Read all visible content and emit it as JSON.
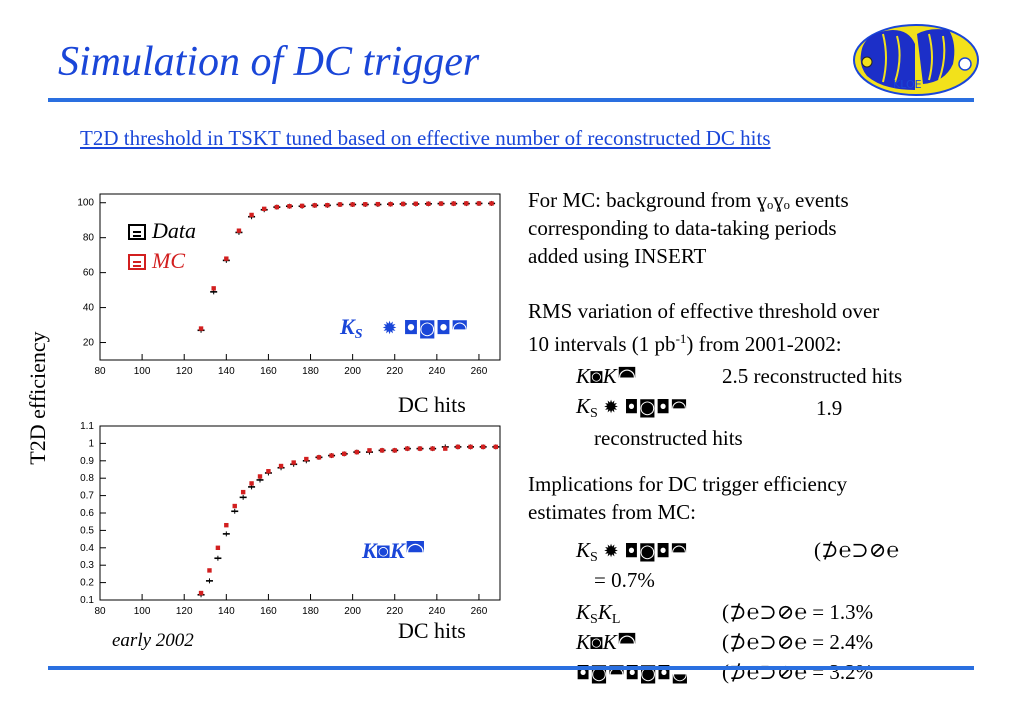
{
  "title": "Simulation of DC trigger",
  "subtitle": "T2D threshold in TSKT tuned based on effective number of reconstructed DC hits",
  "colors": {
    "title": "#1a46d8",
    "rule": "#2a6fe0",
    "mc": "#d21f1f",
    "data": "#000000"
  },
  "figure": {
    "ylabel": "T2D efficiency",
    "xlabel": "DC hits",
    "footnote": "early 2002",
    "legend": {
      "data": "Data",
      "mc": "MC"
    },
    "top_label_k": "K",
    "top_label_sub": "S",
    "top_label_glyphs": "✹  ◘◙◘◚",
    "bottom_label": "K◙K◚"
  },
  "chart_data": [
    {
      "type": "scatter",
      "title": "",
      "xlabel": "DC hits",
      "ylabel": "T2D efficiency",
      "xlim": [
        80,
        270
      ],
      "ylim": [
        10,
        105
      ],
      "xticks": [
        80,
        100,
        120,
        140,
        160,
        180,
        200,
        220,
        240,
        260
      ],
      "yticks": [
        20,
        40,
        60,
        80,
        100
      ],
      "series": [
        {
          "name": "Data",
          "x": [
            128,
            134,
            140,
            146,
            152,
            158,
            164,
            170,
            176,
            182,
            188,
            194,
            200,
            206,
            212,
            218,
            224,
            230,
            236,
            242,
            248,
            254,
            260,
            266
          ],
          "y": [
            27,
            49,
            67,
            83,
            92,
            96,
            97.5,
            98,
            98,
            98.5,
            98.5,
            99,
            99,
            99,
            99,
            99.2,
            99.3,
            99.3,
            99.4,
            99.5,
            99.5,
            99.5,
            99.6,
            99.6
          ]
        },
        {
          "name": "MC",
          "x": [
            128,
            134,
            140,
            146,
            152,
            158,
            164,
            170,
            176,
            182,
            188,
            194,
            200,
            206,
            212,
            218,
            224,
            230,
            236,
            242,
            248,
            254,
            260,
            266
          ],
          "y": [
            28,
            51,
            68,
            84,
            93,
            96.5,
            97.5,
            98,
            98.2,
            98.5,
            98.6,
            99,
            99,
            99.1,
            99.2,
            99.2,
            99.3,
            99.4,
            99.4,
            99.5,
            99.5,
            99.6,
            99.6,
            99.6
          ]
        }
      ]
    },
    {
      "type": "scatter",
      "title": "",
      "xlabel": "DC hits",
      "ylabel": "T2D efficiency",
      "xlim": [
        80,
        270
      ],
      "ylim": [
        0.1,
        1.1
      ],
      "xticks": [
        80,
        100,
        120,
        140,
        160,
        180,
        200,
        220,
        240,
        260
      ],
      "yticks": [
        0.1,
        0.2,
        0.3,
        0.4,
        0.5,
        0.6,
        0.7,
        0.8,
        0.9,
        1,
        1.1
      ],
      "series": [
        {
          "name": "Data",
          "x": [
            128,
            132,
            136,
            140,
            144,
            148,
            152,
            156,
            160,
            166,
            172,
            178,
            184,
            190,
            196,
            202,
            208,
            214,
            220,
            226,
            232,
            238,
            244,
            250,
            256,
            262,
            268
          ],
          "y": [
            0.13,
            0.21,
            0.34,
            0.48,
            0.61,
            0.69,
            0.75,
            0.79,
            0.83,
            0.86,
            0.88,
            0.9,
            0.92,
            0.93,
            0.94,
            0.95,
            0.95,
            0.96,
            0.96,
            0.97,
            0.97,
            0.97,
            0.98,
            0.98,
            0.98,
            0.98,
            0.98
          ]
        },
        {
          "name": "MC",
          "x": [
            128,
            132,
            136,
            140,
            144,
            148,
            152,
            156,
            160,
            166,
            172,
            178,
            184,
            190,
            196,
            202,
            208,
            214,
            220,
            226,
            232,
            238,
            244,
            250,
            256,
            262,
            268
          ],
          "y": [
            0.14,
            0.27,
            0.4,
            0.53,
            0.64,
            0.72,
            0.77,
            0.81,
            0.84,
            0.87,
            0.89,
            0.91,
            0.92,
            0.93,
            0.94,
            0.95,
            0.96,
            0.96,
            0.96,
            0.97,
            0.97,
            0.97,
            0.97,
            0.98,
            0.98,
            0.98,
            0.98
          ]
        }
      ]
    }
  ],
  "text": {
    "p1_line1a": "For MC: background from ",
    "p1_sym": "ɣₒɣₒ",
    "p1_line1b": " events",
    "p1_line2": "corresponding to data-taking periods",
    "p1_line3": "added using INSERT",
    "p2_line1": "RMS variation of effective threshold over",
    "p2_line2a": "10 intervals (1 pb",
    "p2_line2sup": "-1",
    "p2_line2b": ") from 2001-2002:",
    "row1_label": "K◙K◚",
    "row1_value": "2.5 reconstructed hits",
    "row2_label_k": "K",
    "row2_label_sub": "S",
    "row2_label_rest": " ✹ ◘◙◘◚",
    "row2_value": "1.9",
    "row2_value_cont": "reconstructed hits",
    "p3_line1": "Implications for DC trigger efficiency",
    "p3_line2": "estimates from MC:",
    "imp1_label_k": "K",
    "imp1_label_sub": "S",
    "imp1_label_rest": " ✹ ◘◙◘◚",
    "imp1_value": "(⊅℮⊃⊘℮",
    "imp1_value_cont": "= 0.7%",
    "imp2_label_k": "K",
    "imp2_label_sub": "S",
    "imp2_label_k2": "K",
    "imp2_label_sub2": "L",
    "imp2_value": "(⊅℮⊃⊘℮ = 1.3%",
    "imp3_label": "K◙K◚",
    "imp3_value": "(⊅℮⊃⊘℮ = 2.4%",
    "imp4_label": "◘◙◚◘◙◘◛",
    "imp4_value": "(⊅℮⊃⊘℮ = 3.2%"
  }
}
